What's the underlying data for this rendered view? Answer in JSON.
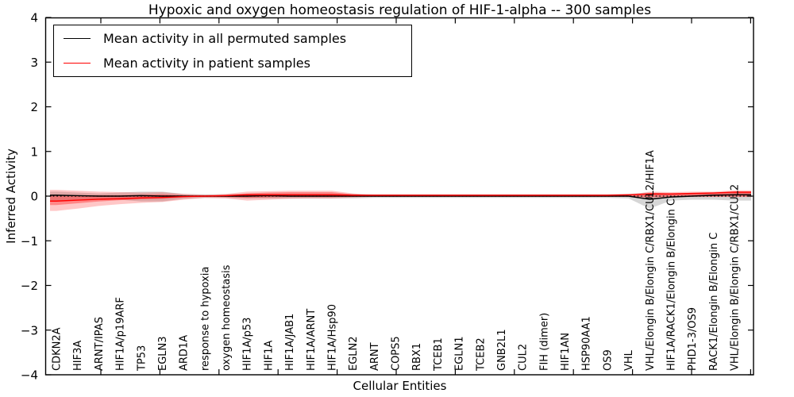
{
  "chart_data": {
    "type": "line",
    "title": "Hypoxic and oxygen homeostasis regulation of HIF-1-alpha -- 300 samples",
    "xlabel": "Cellular Entities",
    "ylabel": "Inferred Activity",
    "ylim": [
      -4,
      4
    ],
    "yticks": [
      -4,
      -3,
      -2,
      -1,
      0,
      1,
      2,
      3,
      4
    ],
    "grid": false,
    "legend_position": "upper left",
    "zero_line": {
      "style": "dotted",
      "color": "#000000",
      "y": 0
    },
    "categories": [
      "CDKN2A",
      "HIF3A",
      "ARNT/IPAS",
      "HIF1A/p19ARF",
      "TP53",
      "EGLN3",
      "ARD1A",
      "response to hypoxia",
      "oxygen homeostasis",
      "HIF1A/p53",
      "HIF1A",
      "HIF1A/JAB1",
      "HIF1A/ARNT",
      "HIF1A/Hsp90",
      "EGLN2",
      "ARNT",
      "COPS5",
      "RBX1",
      "TCEB1",
      "EGLN1",
      "TCEB2",
      "GNB2L1",
      "CUL2",
      "FIH (dimer)",
      "HIF1AN",
      "HSP90AA1",
      "OS9",
      "VHL",
      "VHL/Elongin B/Elongin C/RBX1/CUL2/HIF1A",
      "HIF1A/RACK1/Elongin B/Elongin C",
      "PHD1-3/OS9",
      "RACK1/Elongin B/Elongin C",
      "VHL/Elongin B/Elongin C/RBX1/CUL2"
    ],
    "series": [
      {
        "name": "Mean activity in all permuted samples",
        "color": "#000000",
        "values": [
          0.02,
          0.01,
          0,
          0,
          0.01,
          0,
          0,
          0,
          0,
          0,
          0.01,
          0,
          0,
          0,
          0,
          0,
          0,
          0,
          0,
          0,
          0,
          0,
          0,
          0,
          0,
          0,
          0,
          0,
          -0.07,
          -0.02,
          0,
          0.02,
          0.03
        ]
      },
      {
        "name": "Mean activity in patient samples",
        "color": "#ff0000",
        "values": [
          -0.11,
          -0.09,
          -0.07,
          -0.06,
          -0.04,
          -0.03,
          -0.01,
          0,
          0.01,
          0.03,
          0.03,
          0.03,
          0.03,
          0.03,
          0.02,
          0.02,
          0.02,
          0.02,
          0.02,
          0.02,
          0.02,
          0.02,
          0.02,
          0.02,
          0.02,
          0.02,
          0.02,
          0.03,
          0.05,
          0.05,
          0.06,
          0.07,
          0.09
        ]
      }
    ],
    "bands": [
      {
        "name": "permuted-range",
        "color": "rgba(120,120,120,0.30)",
        "high": [
          0.1,
          0.08,
          0.06,
          0.08,
          0.1,
          0.1,
          0.05,
          0.04,
          0.04,
          0.05,
          0.05,
          0.05,
          0.05,
          0.05,
          0.05,
          0.04,
          0.04,
          0.04,
          0.04,
          0.04,
          0.04,
          0.04,
          0.04,
          0.04,
          0.04,
          0.04,
          0.04,
          0.05,
          0.08,
          0.06,
          0.05,
          0.06,
          0.08
        ],
        "low": [
          -0.1,
          -0.08,
          -0.06,
          -0.08,
          -0.12,
          -0.12,
          -0.06,
          -0.04,
          -0.04,
          -0.05,
          -0.05,
          -0.05,
          -0.05,
          -0.05,
          -0.05,
          -0.04,
          -0.04,
          -0.04,
          -0.04,
          -0.04,
          -0.04,
          -0.04,
          -0.04,
          -0.04,
          -0.04,
          -0.04,
          -0.04,
          -0.05,
          -0.28,
          -0.1,
          -0.08,
          -0.08,
          -0.1
        ]
      },
      {
        "name": "patient-range-outer",
        "color": "rgba(255,30,30,0.25)",
        "high": [
          0.14,
          0.12,
          0.1,
          0.09,
          0.08,
          0.09,
          0.05,
          0.03,
          0.05,
          0.1,
          0.11,
          0.12,
          0.12,
          0.12,
          0.06,
          0.02,
          0.02,
          0.02,
          0.02,
          0.02,
          0.02,
          0.02,
          0.02,
          0.02,
          0.02,
          0.02,
          0.02,
          0.03,
          0.1,
          0.09,
          0.1,
          0.1,
          0.13
        ],
        "low": [
          -0.33,
          -0.28,
          -0.22,
          -0.18,
          -0.15,
          -0.13,
          -0.08,
          -0.04,
          -0.05,
          -0.1,
          -0.08,
          -0.06,
          -0.05,
          -0.05,
          -0.03,
          -0.02,
          -0.02,
          -0.02,
          -0.02,
          -0.02,
          -0.02,
          -0.02,
          -0.02,
          -0.02,
          -0.02,
          -0.02,
          -0.02,
          -0.02,
          -0.05,
          -0.03,
          -0.02,
          -0.02,
          -0.02
        ]
      },
      {
        "name": "patient-range-inner",
        "color": "rgba(255,30,30,0.38)",
        "high": [
          0.03,
          0.02,
          0.02,
          0.02,
          0.03,
          0.04,
          0.02,
          0.01,
          0.03,
          0.06,
          0.08,
          0.09,
          0.09,
          0.09,
          0.04,
          0.02,
          0.02,
          0.02,
          0.02,
          0.02,
          0.02,
          0.02,
          0.02,
          0.02,
          0.02,
          0.02,
          0.02,
          0.02,
          0.07,
          0.06,
          0.07,
          0.07,
          0.1
        ],
        "low": [
          -0.2,
          -0.16,
          -0.12,
          -0.09,
          -0.07,
          -0.06,
          -0.03,
          -0.01,
          -0.02,
          -0.04,
          -0.03,
          -0.02,
          -0.02,
          -0.02,
          -0.01,
          -0.01,
          -0.01,
          -0.01,
          -0.01,
          -0.01,
          -0.01,
          -0.01,
          -0.01,
          -0.01,
          -0.01,
          -0.01,
          -0.01,
          -0.01,
          -0.02,
          -0.01,
          -0.01,
          -0.01,
          -0.01
        ]
      }
    ]
  }
}
